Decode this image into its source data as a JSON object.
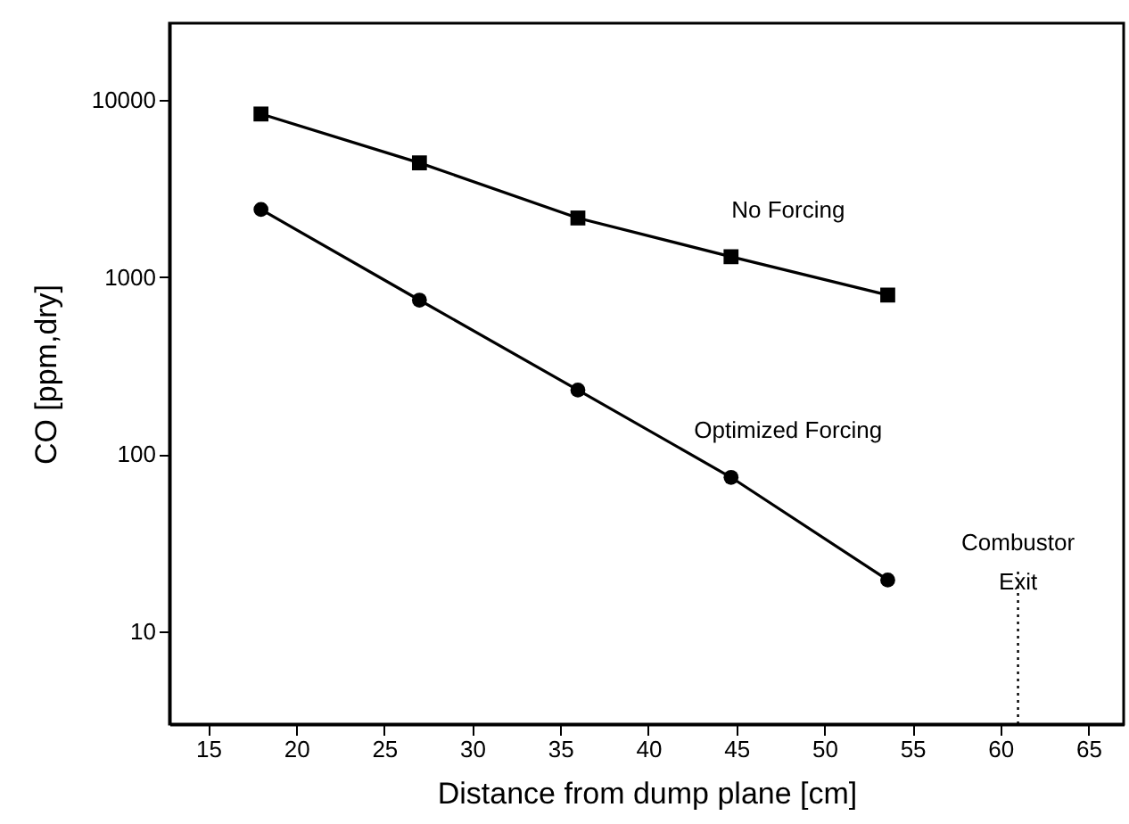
{
  "chart_data": {
    "type": "line",
    "xlabel": "Distance from dump plane [cm]",
    "ylabel": "CO [ppm,dry]",
    "log": "y",
    "grid": false,
    "line_style": "solid",
    "xlim": [
      12.8,
      67
    ],
    "xticks": [
      15,
      20,
      25,
      30,
      35,
      40,
      45,
      50,
      55,
      60,
      65
    ],
    "ylim": [
      3,
      27000
    ],
    "yticks": [
      10,
      100,
      1000,
      10000
    ],
    "series": [
      {
        "name": "No Forcing",
        "color": "#000000",
        "marker": "square",
        "x": [
          18,
          27,
          36,
          44.7,
          53.6
        ],
        "values": [
          8300,
          4400,
          2150,
          1300,
          790
        ]
      },
      {
        "name": "Optimized Forcing",
        "color": "#000000",
        "marker": "circle",
        "x": [
          18,
          27,
          36,
          44.7,
          53.6
        ],
        "values": [
          2400,
          740,
          230,
          74,
          19.5
        ]
      }
    ],
    "ref_lines": [
      {
        "axis": "x",
        "value": 61,
        "label": "Combustor\nExit",
        "line_style": "dotted",
        "color": "#000000"
      }
    ]
  }
}
